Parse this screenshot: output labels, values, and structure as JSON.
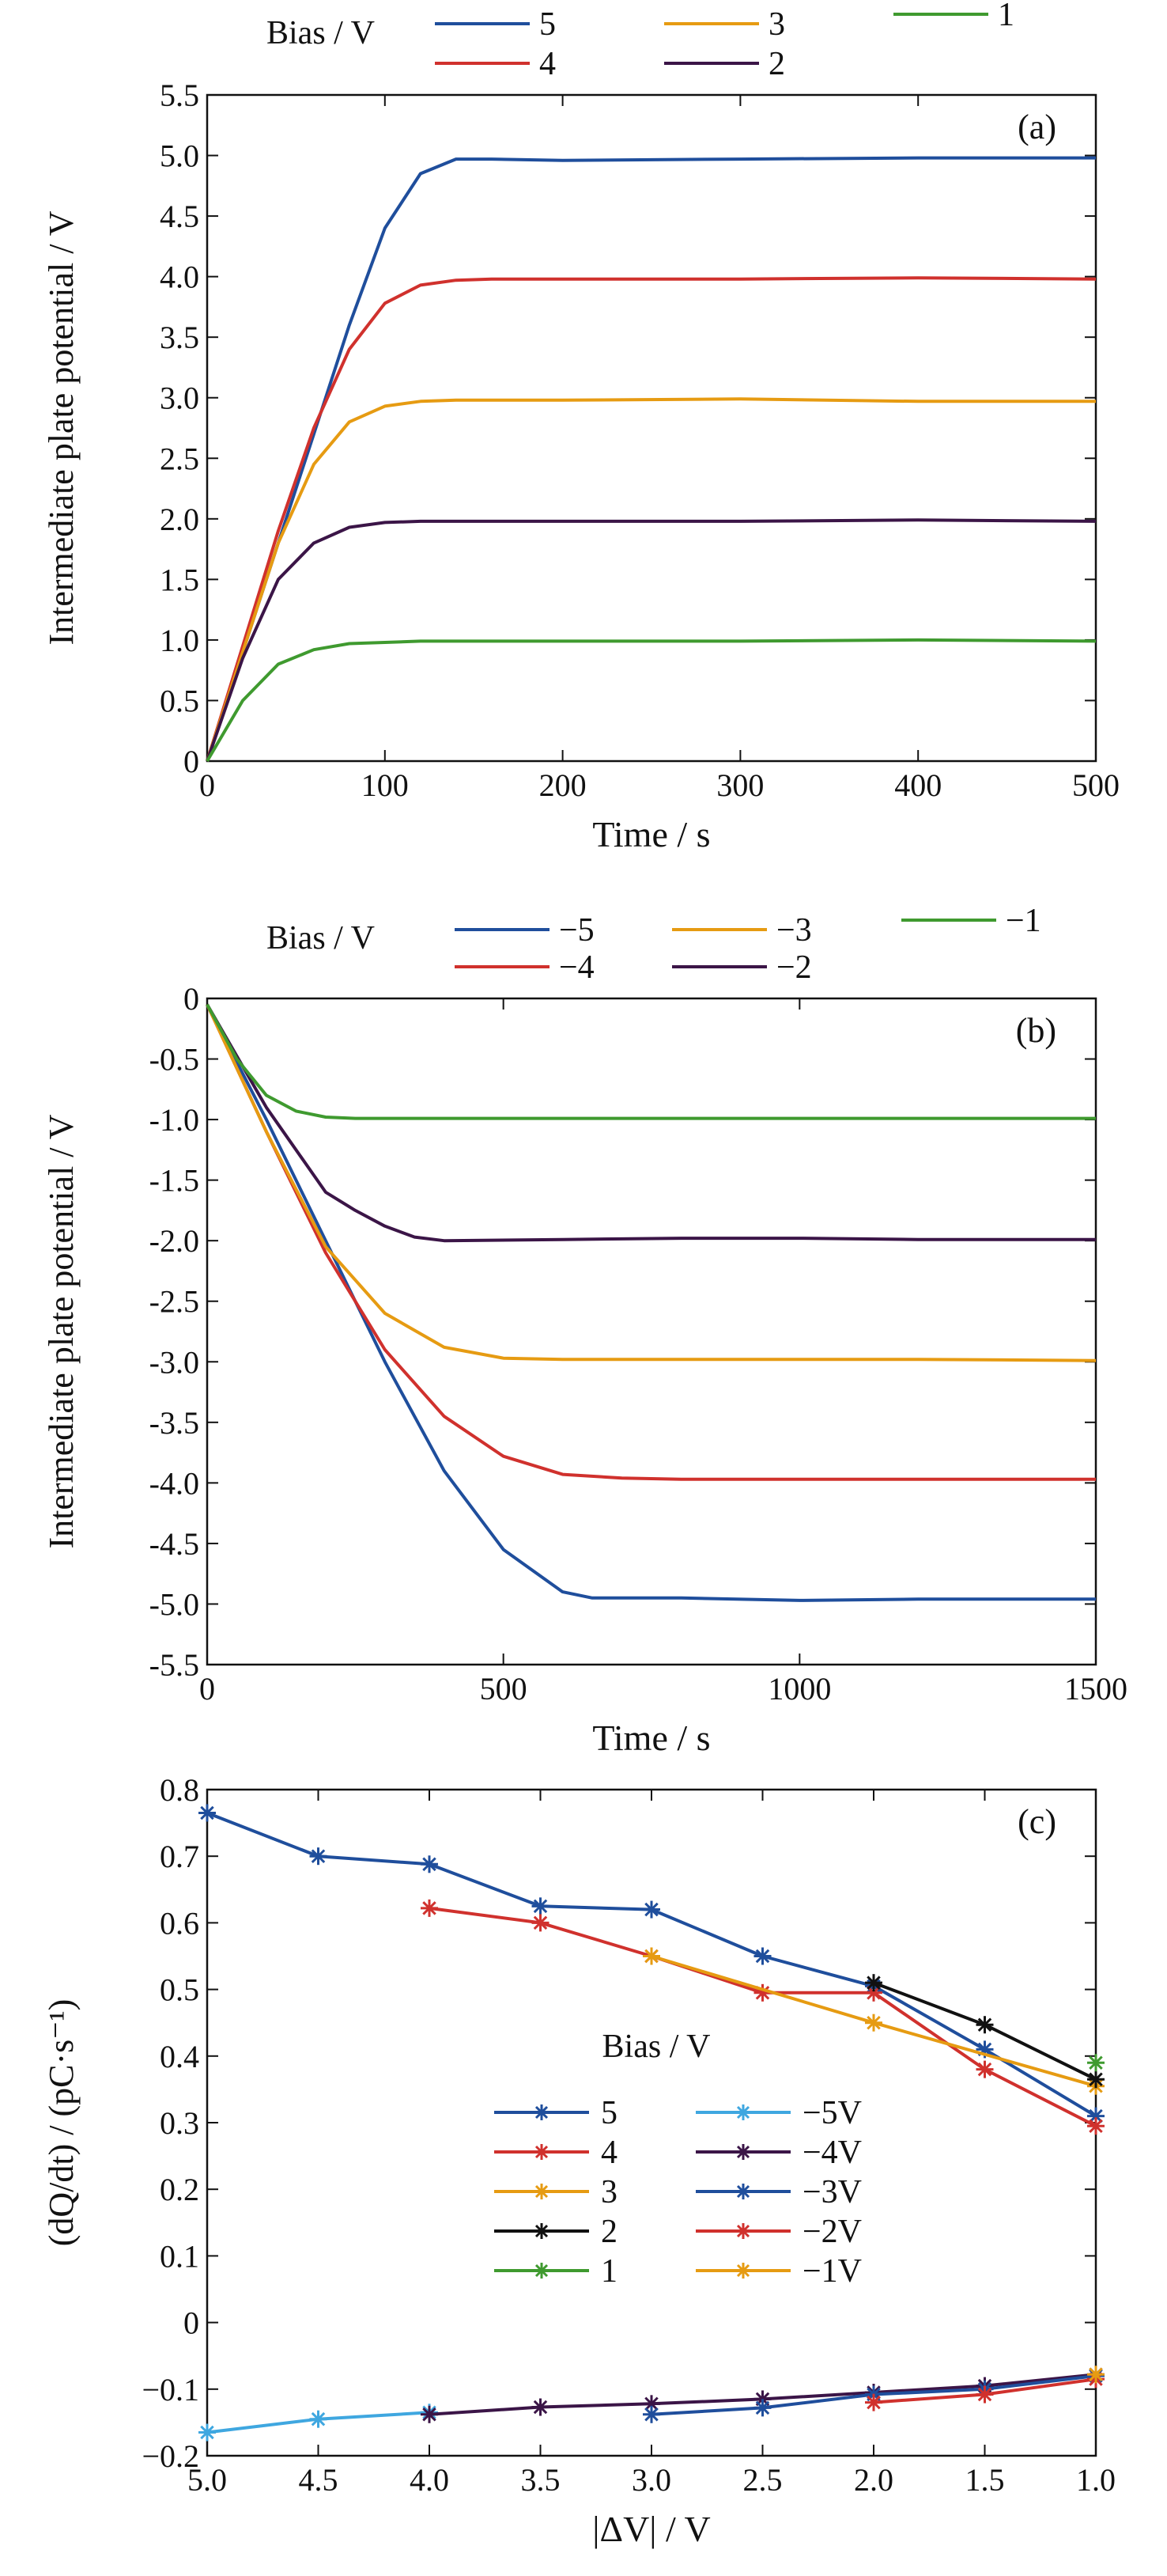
{
  "chart_data": [
    {
      "type": "line",
      "panel_label": "(a)",
      "xlabel": "Time / s",
      "ylabel": "Intermediate plate potential / V",
      "xlim": [
        0,
        500
      ],
      "ylim": [
        0,
        5.5
      ],
      "x_ticks": [
        "0",
        "100",
        "200",
        "300",
        "400",
        "500"
      ],
      "y_ticks": [
        "0",
        "0.5",
        "1.0",
        "1.5",
        "2.0",
        "2.5",
        "3.0",
        "3.5",
        "4.0",
        "4.5",
        "5.0",
        "5.5"
      ],
      "legend_title": "Bias / V",
      "legend_placement": "top",
      "series": [
        {
          "name": "5",
          "color": "#1f4e9c",
          "x": [
            0,
            20,
            40,
            60,
            80,
            100,
            120,
            140,
            160,
            200,
            300,
            400,
            500
          ],
          "y": [
            0,
            0.9,
            1.8,
            2.7,
            3.6,
            4.4,
            4.85,
            4.97,
            4.97,
            4.96,
            4.97,
            4.98,
            4.98
          ]
        },
        {
          "name": "4",
          "color": "#d0312d",
          "x": [
            0,
            20,
            40,
            60,
            80,
            100,
            120,
            140,
            160,
            200,
            300,
            400,
            500
          ],
          "y": [
            0,
            0.95,
            1.9,
            2.75,
            3.4,
            3.78,
            3.93,
            3.97,
            3.98,
            3.98,
            3.98,
            3.99,
            3.98
          ]
        },
        {
          "name": "3",
          "color": "#e69b12",
          "x": [
            0,
            20,
            40,
            60,
            80,
            100,
            120,
            140,
            200,
            300,
            400,
            500
          ],
          "y": [
            0,
            0.9,
            1.8,
            2.45,
            2.8,
            2.93,
            2.97,
            2.98,
            2.98,
            2.99,
            2.97,
            2.97
          ]
        },
        {
          "name": "2",
          "color": "#3b1547",
          "x": [
            0,
            20,
            40,
            60,
            80,
            100,
            120,
            140,
            200,
            300,
            400,
            500
          ],
          "y": [
            0,
            0.85,
            1.5,
            1.8,
            1.93,
            1.97,
            1.98,
            1.98,
            1.98,
            1.98,
            1.99,
            1.98
          ]
        },
        {
          "name": "1",
          "color": "#3f9a2f",
          "x": [
            0,
            20,
            40,
            60,
            80,
            100,
            120,
            150,
            200,
            300,
            400,
            500
          ],
          "y": [
            0,
            0.5,
            0.8,
            0.92,
            0.97,
            0.98,
            0.99,
            0.99,
            0.99,
            0.99,
            1.0,
            0.99
          ]
        }
      ]
    },
    {
      "type": "line",
      "panel_label": "(b)",
      "xlabel": "Time / s",
      "ylabel": "Intermediate plate potential / V",
      "xlim": [
        0,
        1500
      ],
      "ylim": [
        -5.5,
        0
      ],
      "x_ticks": [
        "0",
        "500",
        "1000",
        "1500"
      ],
      "y_ticks": [
        "0",
        "-0.5",
        "-1.0",
        "-1.5",
        "-2.0",
        "-2.5",
        "-3.0",
        "-3.5",
        "-4.0",
        "-4.5",
        "-5.0",
        "-5.5"
      ],
      "legend_title": "Bias / V",
      "legend_placement": "top",
      "series": [
        {
          "name": "−5",
          "color": "#1f4e9c",
          "x": [
            0,
            100,
            200,
            300,
            400,
            500,
            600,
            650,
            700,
            800,
            1000,
            1200,
            1500
          ],
          "y": [
            -0.05,
            -1.0,
            -2.0,
            -3.0,
            -3.9,
            -4.55,
            -4.9,
            -4.95,
            -4.95,
            -4.95,
            -4.97,
            -4.96,
            -4.96
          ]
        },
        {
          "name": "−4",
          "color": "#d0312d",
          "x": [
            0,
            100,
            200,
            300,
            400,
            500,
            600,
            700,
            800,
            1000,
            1200,
            1500
          ],
          "y": [
            -0.05,
            -1.1,
            -2.1,
            -2.9,
            -3.45,
            -3.78,
            -3.93,
            -3.96,
            -3.97,
            -3.97,
            -3.97,
            -3.97
          ]
        },
        {
          "name": "−3",
          "color": "#e69b12",
          "x": [
            0,
            100,
            200,
            300,
            400,
            500,
            600,
            800,
            1000,
            1200,
            1500
          ],
          "y": [
            -0.05,
            -1.1,
            -2.05,
            -2.6,
            -2.88,
            -2.97,
            -2.98,
            -2.98,
            -2.98,
            -2.98,
            -2.99
          ]
        },
        {
          "name": "−2",
          "color": "#3b1547",
          "x": [
            0,
            100,
            200,
            250,
            300,
            350,
            400,
            600,
            800,
            1000,
            1200,
            1500
          ],
          "y": [
            -0.05,
            -0.9,
            -1.6,
            -1.75,
            -1.88,
            -1.97,
            -2.0,
            -1.99,
            -1.98,
            -1.98,
            -1.99,
            -1.99
          ]
        },
        {
          "name": "−1",
          "color": "#3f9a2f",
          "x": [
            0,
            50,
            100,
            150,
            200,
            250,
            300,
            500,
            800,
            1000,
            1200,
            1500
          ],
          "y": [
            -0.05,
            -0.5,
            -0.8,
            -0.93,
            -0.98,
            -0.99,
            -0.99,
            -0.99,
            -0.99,
            -0.99,
            -0.99,
            -0.99
          ]
        }
      ]
    },
    {
      "type": "line",
      "panel_label": "(c)",
      "xlabel": "|ΔV| / V",
      "ylabel": "(dQ/dt) / (pC·s⁻¹)",
      "xlim": [
        5.0,
        1.0
      ],
      "ylim": [
        -0.2,
        0.8
      ],
      "x_ticks": [
        "5.0",
        "4.5",
        "4.0",
        "3.5",
        "3.0",
        "2.5",
        "2.0",
        "1.5",
        "1.0"
      ],
      "y_ticks": [
        "−0.2",
        "−0.1",
        "0",
        "0.1",
        "0.2",
        "0.3",
        "0.4",
        "0.5",
        "0.6",
        "0.7",
        "0.8"
      ],
      "legend_title": "Bias / V",
      "legend_placement": "center",
      "marker": "asterisk",
      "series": [
        {
          "name": "5",
          "color": "#1f4e9c",
          "x": [
            5.0,
            4.5,
            4.0,
            3.5,
            3.0,
            2.5,
            2.0,
            1.5,
            1.0
          ],
          "y": [
            0.765,
            0.7,
            0.688,
            0.625,
            0.62,
            0.55,
            0.505,
            0.41,
            0.31
          ]
        },
        {
          "name": "4",
          "color": "#d0312d",
          "x": [
            4.0,
            3.5,
            3.0,
            2.5,
            2.0,
            1.5,
            1.0
          ],
          "y": [
            0.622,
            0.6,
            0.55,
            0.495,
            0.495,
            0.38,
            0.295
          ]
        },
        {
          "name": "3",
          "color": "#e69b12",
          "x": [
            3.0,
            2.0,
            1.0
          ],
          "y": [
            0.55,
            0.45,
            0.355
          ]
        },
        {
          "name": "2",
          "color": "#111111",
          "x": [
            2.0,
            1.5,
            1.0
          ],
          "y": [
            0.51,
            0.447,
            0.365
          ]
        },
        {
          "name": "1",
          "color": "#3f9a2f",
          "x": [
            1.0
          ],
          "y": [
            0.39
          ]
        },
        {
          "name": "−5V",
          "color": "#3fa7e0",
          "x": [
            5.0,
            4.5,
            4.0
          ],
          "y": [
            -0.165,
            -0.145,
            -0.135
          ]
        },
        {
          "name": "−4V",
          "color": "#3b1547",
          "x": [
            4.0,
            3.5,
            3.0,
            2.5,
            2.0,
            1.5,
            1.0
          ],
          "y": [
            -0.138,
            -0.127,
            -0.122,
            -0.115,
            -0.105,
            -0.095,
            -0.078
          ]
        },
        {
          "name": "−3V",
          "color": "#1f4e9c",
          "x": [
            3.0,
            2.5,
            2.0,
            1.5,
            1.0
          ],
          "y": [
            -0.138,
            -0.128,
            -0.108,
            -0.1,
            -0.08
          ]
        },
        {
          "name": "−2V",
          "color": "#d0312d",
          "x": [
            2.0,
            1.5,
            1.0
          ],
          "y": [
            -0.12,
            -0.108,
            -0.085
          ]
        },
        {
          "name": "−1V",
          "color": "#e69b12",
          "x": [
            1.0
          ],
          "y": [
            -0.078
          ]
        }
      ]
    }
  ]
}
